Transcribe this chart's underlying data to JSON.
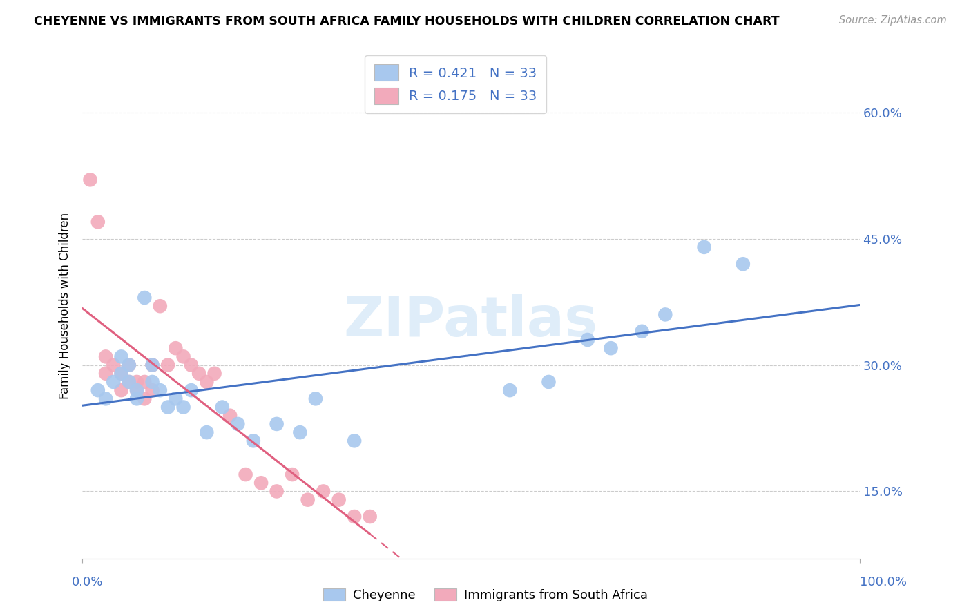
{
  "title": "CHEYENNE VS IMMIGRANTS FROM SOUTH AFRICA FAMILY HOUSEHOLDS WITH CHILDREN CORRELATION CHART",
  "source": "Source: ZipAtlas.com",
  "ylabel": "Family Households with Children",
  "yticks": [
    "15.0%",
    "30.0%",
    "45.0%",
    "60.0%"
  ],
  "ytick_vals": [
    0.15,
    0.3,
    0.45,
    0.6
  ],
  "legend_label1": "Cheyenne",
  "legend_label2": "Immigrants from South Africa",
  "r1": 0.421,
  "n1": 33,
  "r2": 0.175,
  "n2": 33,
  "color_blue": "#A8C8EE",
  "color_pink": "#F2AABB",
  "color_blue_line": "#4472C4",
  "color_pink_line": "#E06080",
  "xlim": [
    0.0,
    1.0
  ],
  "ylim": [
    0.07,
    0.67
  ],
  "cheyenne_x": [
    0.02,
    0.03,
    0.04,
    0.05,
    0.05,
    0.06,
    0.06,
    0.07,
    0.07,
    0.08,
    0.09,
    0.09,
    0.1,
    0.11,
    0.12,
    0.13,
    0.14,
    0.16,
    0.18,
    0.2,
    0.22,
    0.25,
    0.28,
    0.3,
    0.35,
    0.55,
    0.6,
    0.65,
    0.68,
    0.72,
    0.75,
    0.8,
    0.85
  ],
  "cheyenne_y": [
    0.27,
    0.26,
    0.28,
    0.29,
    0.31,
    0.28,
    0.3,
    0.27,
    0.26,
    0.38,
    0.3,
    0.28,
    0.27,
    0.25,
    0.26,
    0.25,
    0.27,
    0.22,
    0.25,
    0.23,
    0.21,
    0.23,
    0.22,
    0.26,
    0.21,
    0.27,
    0.28,
    0.33,
    0.32,
    0.34,
    0.36,
    0.44,
    0.42
  ],
  "sa_x": [
    0.01,
    0.02,
    0.03,
    0.03,
    0.04,
    0.05,
    0.05,
    0.06,
    0.06,
    0.07,
    0.07,
    0.08,
    0.08,
    0.09,
    0.09,
    0.1,
    0.11,
    0.12,
    0.13,
    0.14,
    0.15,
    0.16,
    0.17,
    0.19,
    0.21,
    0.23,
    0.25,
    0.27,
    0.29,
    0.31,
    0.33,
    0.35,
    0.37
  ],
  "sa_y": [
    0.52,
    0.47,
    0.31,
    0.29,
    0.3,
    0.29,
    0.27,
    0.28,
    0.3,
    0.28,
    0.27,
    0.26,
    0.28,
    0.3,
    0.27,
    0.37,
    0.3,
    0.32,
    0.31,
    0.3,
    0.29,
    0.28,
    0.29,
    0.24,
    0.17,
    0.16,
    0.15,
    0.17,
    0.14,
    0.15,
    0.14,
    0.12,
    0.12
  ]
}
